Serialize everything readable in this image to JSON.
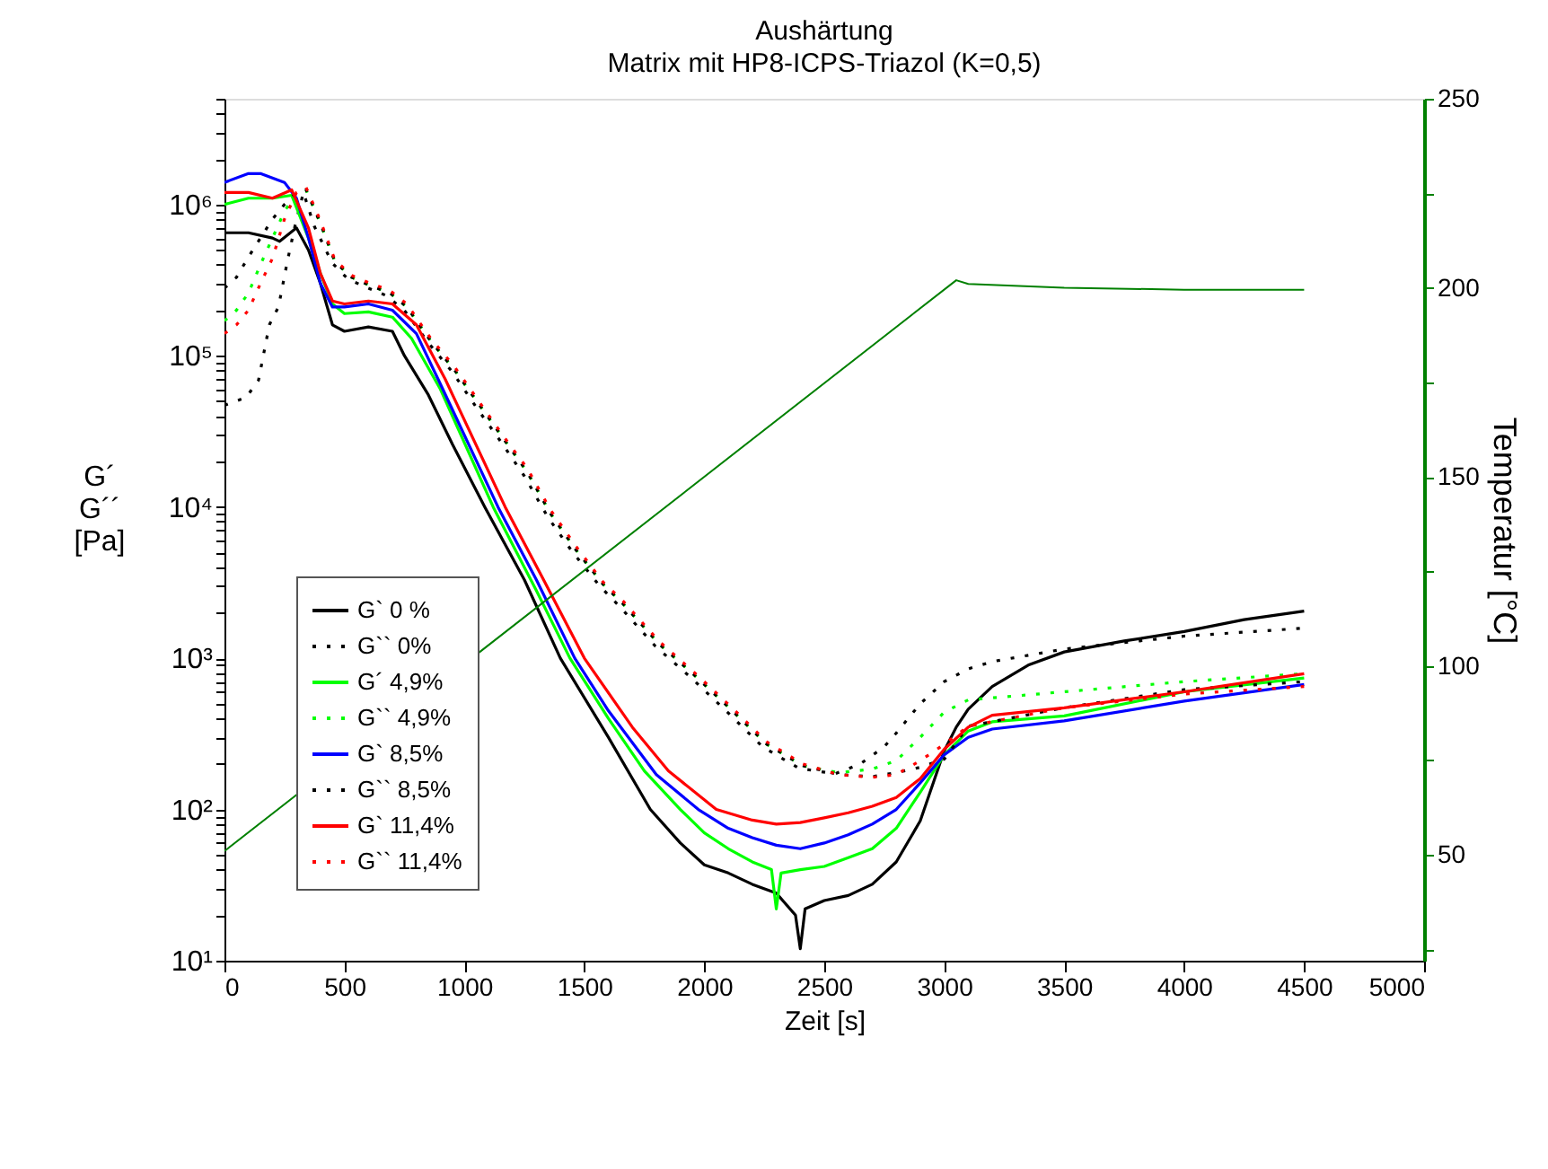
{
  "chart_data": {
    "type": "line",
    "title": "Aushärtung",
    "subtitle": "Matrix mit HP8-ICPS-Triazol (K=0,5)",
    "xlabel": "Zeit [s]",
    "ylabel": "G´\nG´´\n[Pa]",
    "y2label": "Temperatur [°C]",
    "log": "y",
    "legend": "bottom left",
    "xlim": [
      0,
      5000
    ],
    "xticks": [
      0,
      500,
      1000,
      1500,
      2000,
      2500,
      3000,
      3500,
      4000,
      4500,
      5000
    ],
    "ylim": [
      10,
      5000000
    ],
    "yticks": [
      {
        "value": 10,
        "label": "10¹"
      },
      {
        "value": 100,
        "label": "10²"
      },
      {
        "value": 1000,
        "label": "10³"
      },
      {
        "value": 10000,
        "label": "10⁴"
      },
      {
        "value": 100000,
        "label": "10⁵"
      },
      {
        "value": 1000000,
        "label": "10⁶"
      },
      {
        "value": 20,
        "label": null
      },
      {
        "value": 30,
        "label": null
      },
      {
        "value": 40,
        "label": null
      },
      {
        "value": 50,
        "label": null
      },
      {
        "value": 60,
        "label": null
      },
      {
        "value": 70,
        "label": null
      },
      {
        "value": 80,
        "label": null
      },
      {
        "value": 90,
        "label": null
      },
      {
        "value": 200,
        "label": null
      },
      {
        "value": 300,
        "label": null
      },
      {
        "value": 400,
        "label": null
      },
      {
        "value": 500,
        "label": null
      },
      {
        "value": 600,
        "label": null
      },
      {
        "value": 700,
        "label": null
      },
      {
        "value": 800,
        "label": null
      },
      {
        "value": 900,
        "label": null
      },
      {
        "value": 2000,
        "label": null
      },
      {
        "value": 3000,
        "label": null
      },
      {
        "value": 4000,
        "label": null
      },
      {
        "value": 5000,
        "label": null
      },
      {
        "value": 6000,
        "label": null
      },
      {
        "value": 7000,
        "label": null
      },
      {
        "value": 8000,
        "label": null
      },
      {
        "value": 9000,
        "label": null
      },
      {
        "value": 20000,
        "label": null
      },
      {
        "value": 30000,
        "label": null
      },
      {
        "value": 40000,
        "label": null
      },
      {
        "value": 50000,
        "label": null
      },
      {
        "value": 60000,
        "label": null
      },
      {
        "value": 70000,
        "label": null
      },
      {
        "value": 80000,
        "label": null
      },
      {
        "value": 90000,
        "label": null
      },
      {
        "value": 200000,
        "label": null
      },
      {
        "value": 300000,
        "label": null
      },
      {
        "value": 400000,
        "label": null
      },
      {
        "value": 500000,
        "label": null
      },
      {
        "value": 600000,
        "label": null
      },
      {
        "value": 700000,
        "label": null
      },
      {
        "value": 800000,
        "label": null
      },
      {
        "value": 900000,
        "label": null
      },
      {
        "value": 2000000,
        "label": null
      },
      {
        "value": 3000000,
        "label": null
      },
      {
        "value": 4000000,
        "label": null
      },
      {
        "value": 5000000,
        "label": null
      }
    ],
    "y2lim": [
      22,
      250
    ],
    "y2ticks": [
      {
        "value": 25,
        "label": null
      },
      50,
      {
        "value": 75,
        "label": null
      },
      100,
      {
        "value": 125,
        "label": null
      },
      150,
      {
        "value": 175,
        "label": null
      },
      200,
      {
        "value": 225,
        "label": null
      },
      250
    ],
    "series": [
      {
        "name": "G`  0 %",
        "color": "#000000",
        "line_style": "solid",
        "x": [
          0,
          100,
          200,
          230,
          300,
          350,
          400,
          450,
          500,
          600,
          700,
          750,
          850,
          950,
          1085,
          1250,
          1400,
          1600,
          1775,
          1900,
          2000,
          2100,
          2200,
          2300,
          2380,
          2400,
          2420,
          2500,
          2600,
          2700,
          2800,
          2900,
          3000,
          3050,
          3100,
          3200,
          3350,
          3500,
          3750,
          4000,
          4250,
          4500
        ],
        "values": [
          650000,
          650000,
          600000,
          570000,
          700000,
          500000,
          300000,
          160000,
          145000,
          155000,
          145000,
          100000,
          55000,
          26000,
          10000,
          3300,
          1000,
          300,
          100,
          60,
          43,
          38,
          32,
          28,
          20,
          12,
          22,
          25,
          27,
          32,
          45,
          84,
          244,
          350,
          460,
          650,
          900,
          1100,
          1300,
          1500,
          1800,
          2050
        ]
      },
      {
        "name": "G`` 0%",
        "color": "#000000",
        "line_style": "dotted",
        "x": [
          0,
          90,
          142,
          187,
          225,
          262,
          292,
          329,
          374,
          449,
          516,
          599,
          674,
          749,
          853,
          950,
          1048,
          1152,
          1250,
          1347,
          1452,
          1564,
          1647,
          1796,
          1946,
          2096,
          2245,
          2395,
          2545,
          2650,
          2750,
          2800,
          2900,
          3000,
          3100,
          3200,
          3500,
          4000,
          4500
        ],
        "values": [
          47000,
          53000,
          69000,
          160000,
          210000,
          420000,
          700000,
          1200000,
          720000,
          410000,
          320000,
          280000,
          250000,
          200000,
          120000,
          78000,
          46000,
          27000,
          16000,
          8600,
          5000,
          3000,
          2200,
          1200,
          740,
          440,
          258,
          187,
          172,
          200,
          260,
          320,
          500,
          700,
          850,
          950,
          1150,
          1400,
          1580
        ]
      },
      {
        "name": "G´ 4,9%",
        "color": "#00ff00",
        "line_style": "solid",
        "x": [
          0,
          100,
          200,
          280,
          350,
          400,
          450,
          500,
          600,
          700,
          780,
          900,
          1120,
          1300,
          1440,
          1600,
          1750,
          1900,
          2000,
          2100,
          2200,
          2280,
          2300,
          2320,
          2400,
          2500,
          2600,
          2700,
          2800,
          2900,
          3000,
          3100,
          3200,
          3500,
          4000,
          4500
        ],
        "values": [
          1000000,
          1100000,
          1100000,
          1150000,
          600000,
          350000,
          220000,
          190000,
          195000,
          180000,
          130000,
          60000,
          10000,
          2800,
          1000,
          400,
          180,
          100,
          70,
          55,
          45,
          40,
          22,
          38,
          40,
          42,
          48,
          55,
          75,
          130,
          230,
          330,
          380,
          415,
          600,
          740
        ]
      },
      {
        "name": "G`` 4,9%",
        "color": "#00ff00",
        "line_style": "dotted",
        "x": [
          0,
          50,
          100,
          150,
          200,
          250,
          300,
          340,
          400,
          460,
          530,
          610,
          690,
          760,
          860,
          960,
          1060,
          1165,
          1262,
          1360,
          1465,
          1577,
          1660,
          1810,
          1960,
          2110,
          2260,
          2410,
          2560,
          2700,
          2800,
          2900,
          3000,
          3100,
          3500,
          4000,
          4500
        ],
        "values": [
          170000,
          200000,
          260000,
          400000,
          600000,
          900000,
          1200000,
          1250000,
          750000,
          420000,
          330000,
          290000,
          260000,
          210000,
          125000,
          80000,
          48000,
          28000,
          17000,
          9000,
          5200,
          3100,
          2300,
          1250,
          770,
          460,
          270,
          195,
          175,
          185,
          210,
          300,
          440,
          530,
          600,
          700,
          790
        ]
      },
      {
        "name": "G`  8,5%",
        "color": "#0000ff",
        "line_style": "solid",
        "x": [
          0,
          100,
          150,
          250,
          300,
          350,
          400,
          450,
          500,
          600,
          700,
          800,
          900,
          1140,
          1300,
          1460,
          1600,
          1800,
          1975,
          2100,
          2200,
          2300,
          2400,
          2500,
          2600,
          2700,
          2800,
          2900,
          3000,
          3100,
          3200,
          3500,
          4000,
          4500
        ],
        "values": [
          1400000,
          1600000,
          1600000,
          1400000,
          1100000,
          600000,
          300000,
          210000,
          210000,
          220000,
          200000,
          140000,
          65000,
          10000,
          3300,
          1000,
          450,
          170,
          100,
          75,
          65,
          58,
          55,
          60,
          68,
          80,
          100,
          150,
          230,
          300,
          340,
          385,
          520,
          670
        ]
      },
      {
        "name": "G`` 8,5%",
        "color": "#000000",
        "line_style": "dotted",
        "x": [
          0,
          50,
          100,
          150,
          200,
          250,
          300,
          340,
          400,
          460,
          530,
          610,
          690,
          760,
          860,
          960,
          1060,
          1165,
          1262,
          1360,
          1465,
          1577,
          1660,
          1810,
          1960,
          2110,
          2260,
          2410,
          2560,
          2700,
          2800,
          2900,
          3000,
          3100,
          3500,
          4000,
          4500
        ],
        "values": [
          280000,
          330000,
          450000,
          600000,
          800000,
          1000000,
          1200000,
          1250000,
          750000,
          420000,
          330000,
          290000,
          260000,
          210000,
          125000,
          80000,
          48000,
          28000,
          17000,
          9000,
          5200,
          3100,
          2300,
          1250,
          770,
          460,
          270,
          195,
          170,
          165,
          175,
          190,
          215,
          355,
          470,
          620,
          700
        ]
      },
      {
        "name": "G`  11,4%",
        "color": "#ff0000",
        "line_style": "solid",
        "x": [
          0,
          100,
          200,
          280,
          350,
          400,
          450,
          500,
          600,
          700,
          800,
          920,
          1170,
          1330,
          1500,
          1700,
          1850,
          2050,
          2200,
          2300,
          2400,
          2500,
          2600,
          2700,
          2800,
          2900,
          3000,
          3100,
          3200,
          3500,
          4000,
          4500
        ],
        "values": [
          1200000,
          1200000,
          1100000,
          1250000,
          700000,
          350000,
          230000,
          220000,
          230000,
          220000,
          160000,
          70000,
          10000,
          3300,
          1000,
          350,
          180,
          100,
          85,
          80,
          82,
          88,
          95,
          105,
          120,
          160,
          250,
          350,
          420,
          470,
          600,
          790
        ]
      },
      {
        "name": "G`` 11,4%",
        "color": "#ff0000",
        "line_style": "dotted",
        "x": [
          0,
          50,
          100,
          150,
          200,
          250,
          300,
          340,
          400,
          460,
          530,
          610,
          690,
          760,
          860,
          960,
          1060,
          1165,
          1262,
          1360,
          1465,
          1577,
          1660,
          1810,
          1960,
          2110,
          2260,
          2410,
          2560,
          2700,
          2800,
          2900,
          3000,
          3100,
          3500,
          4000,
          4500
        ],
        "values": [
          140000,
          160000,
          200000,
          300000,
          440000,
          800000,
          1200000,
          1300000,
          780000,
          430000,
          340000,
          300000,
          270000,
          220000,
          130000,
          84000,
          50000,
          29000,
          18000,
          9500,
          5500,
          3200,
          2400,
          1300,
          800,
          480,
          280,
          200,
          170,
          163,
          170,
          210,
          270,
          355,
          470,
          580,
          650
        ]
      },
      {
        "color": "#008000",
        "line_style": "solid",
        "axis": "y2",
        "x": [
          0,
          3050,
          3100,
          3500,
          4000,
          4500
        ],
        "values": [
          51,
          202,
          201,
          200,
          199.5,
          199.5
        ]
      }
    ]
  }
}
